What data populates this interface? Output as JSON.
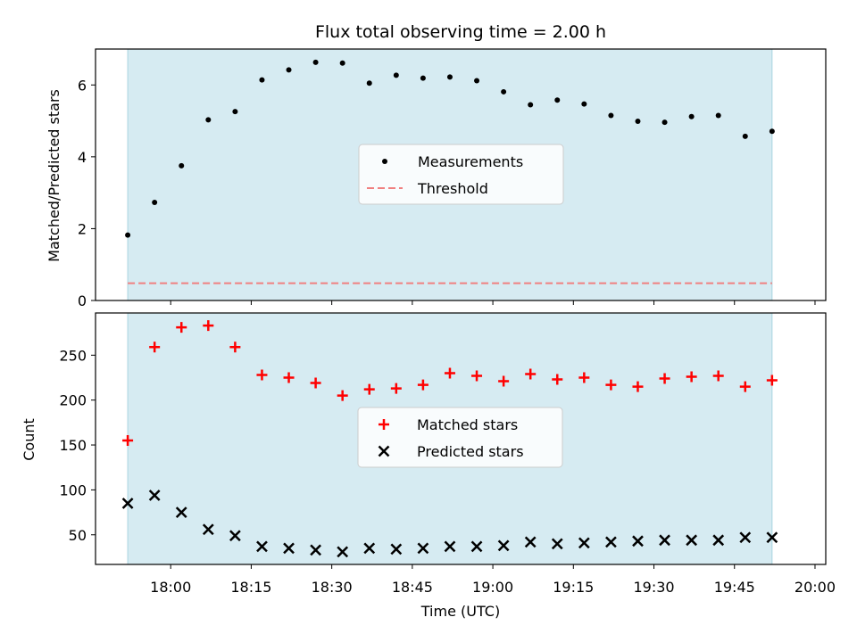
{
  "chart_data": [
    {
      "type": "scatter",
      "title": "Flux total observing time = 2.00 h",
      "xlabel": "",
      "ylabel": "Matched/Predicted stars",
      "xlim_minutes": [
        1066,
        1202
      ],
      "ylim": [
        0,
        7
      ],
      "yticks": [
        0,
        2,
        4,
        6
      ],
      "shaded_span_minutes": [
        1072,
        1192
      ],
      "series": [
        {
          "name": "Measurements",
          "marker": "dot",
          "color": "#000000",
          "x_minutes": [
            1072,
            1077,
            1082,
            1087,
            1092,
            1097,
            1102,
            1107,
            1112,
            1117,
            1122,
            1127,
            1132,
            1137,
            1142,
            1147,
            1152,
            1157,
            1162,
            1167,
            1172,
            1177,
            1182,
            1187,
            1192
          ],
          "values": [
            1.82,
            2.73,
            3.75,
            5.03,
            5.26,
            6.14,
            6.42,
            6.63,
            6.61,
            6.05,
            6.27,
            6.19,
            6.22,
            6.12,
            5.81,
            5.45,
            5.58,
            5.47,
            5.15,
            4.99,
            4.96,
            5.12,
            5.15,
            4.57,
            4.71
          ]
        },
        {
          "name": "Threshold",
          "style": "dashed",
          "color": "#f08080",
          "value": 0.48
        }
      ],
      "legend": "center"
    },
    {
      "type": "scatter",
      "title": "",
      "xlabel": "Time (UTC)",
      "ylabel": "Count",
      "xlim_minutes": [
        1066,
        1202
      ],
      "ylim": [
        17,
        297
      ],
      "yticks": [
        50,
        100,
        150,
        200,
        250
      ],
      "xticks": [
        {
          "minutes": 1080,
          "label": "18:00"
        },
        {
          "minutes": 1095,
          "label": "18:15"
        },
        {
          "minutes": 1110,
          "label": "18:30"
        },
        {
          "minutes": 1125,
          "label": "18:45"
        },
        {
          "minutes": 1140,
          "label": "19:00"
        },
        {
          "minutes": 1155,
          "label": "19:15"
        },
        {
          "minutes": 1170,
          "label": "19:30"
        },
        {
          "minutes": 1185,
          "label": "19:45"
        },
        {
          "minutes": 1200,
          "label": "20:00"
        }
      ],
      "shaded_span_minutes": [
        1072,
        1192
      ],
      "series": [
        {
          "name": "Matched stars",
          "marker": "plus",
          "color": "#ff0000",
          "x_minutes": [
            1072,
            1077,
            1082,
            1087,
            1092,
            1097,
            1102,
            1107,
            1112,
            1117,
            1122,
            1127,
            1132,
            1137,
            1142,
            1147,
            1152,
            1157,
            1162,
            1167,
            1172,
            1177,
            1182,
            1187,
            1192
          ],
          "values": [
            155,
            259,
            281,
            283,
            259,
            228,
            225,
            219,
            205,
            212,
            213,
            217,
            230,
            227,
            221,
            229,
            223,
            225,
            217,
            215,
            224,
            226,
            227,
            215,
            222
          ]
        },
        {
          "name": "Predicted stars",
          "marker": "x",
          "color": "#000000",
          "x_minutes": [
            1072,
            1077,
            1082,
            1087,
            1092,
            1097,
            1102,
            1107,
            1112,
            1117,
            1122,
            1127,
            1132,
            1137,
            1142,
            1147,
            1152,
            1157,
            1162,
            1167,
            1172,
            1177,
            1182,
            1187,
            1192
          ],
          "values": [
            85,
            94,
            75,
            56,
            49,
            37,
            35,
            33,
            31,
            35,
            34,
            35,
            37,
            37,
            38,
            42,
            40,
            41,
            42,
            43,
            44,
            44,
            44,
            47,
            47
          ]
        }
      ],
      "legend": "center"
    }
  ]
}
